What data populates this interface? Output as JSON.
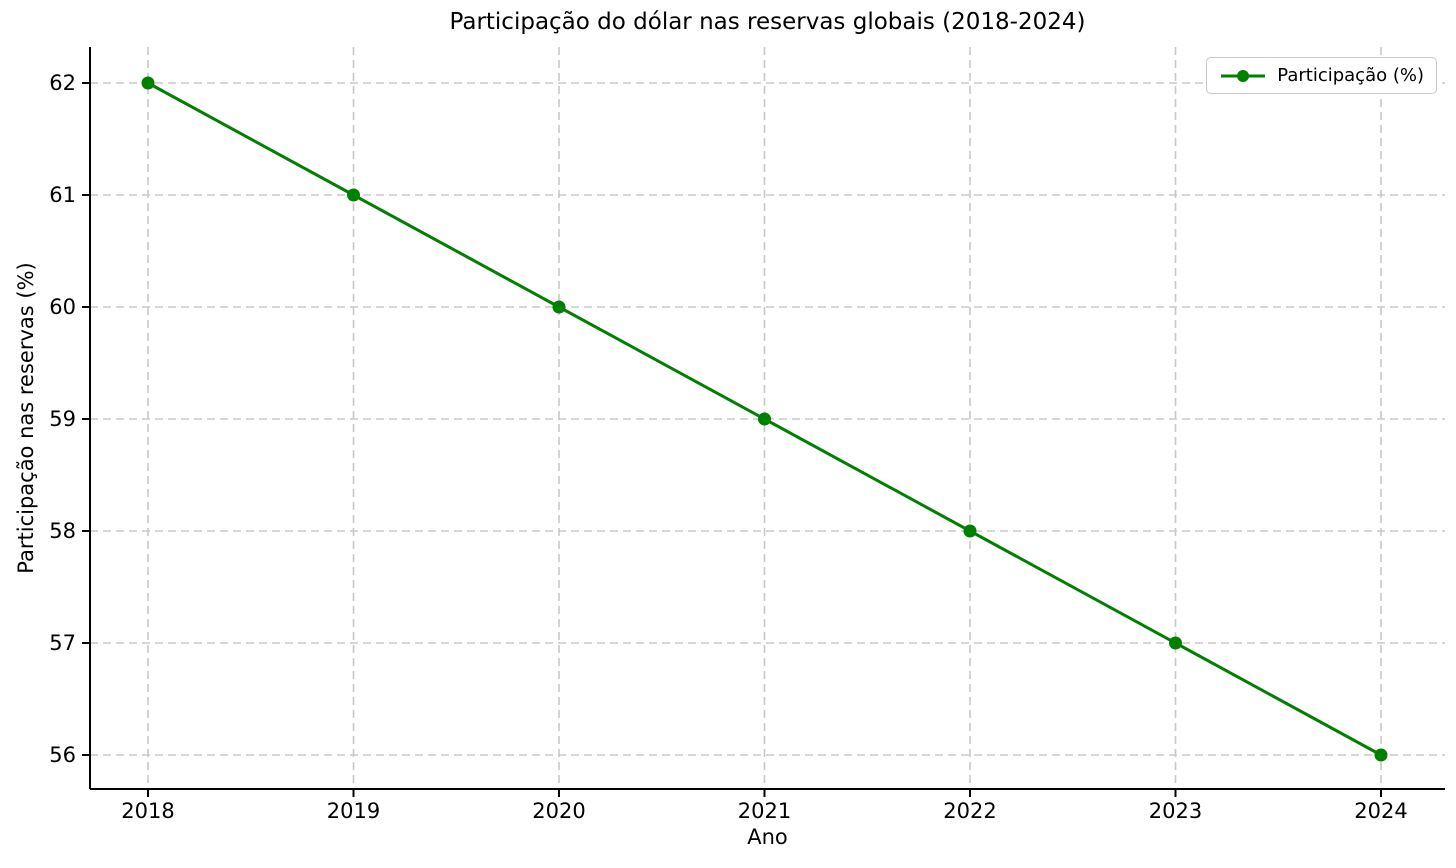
{
  "chart_data": {
    "type": "line",
    "title": "Participação do dólar nas reservas globais (2018-2024)",
    "xlabel": "Ano",
    "ylabel": "Participação nas reservas (%)",
    "x": [
      2018,
      2019,
      2020,
      2021,
      2022,
      2023,
      2024
    ],
    "series": [
      {
        "name": "Participação (%)",
        "values": [
          62,
          61,
          60,
          59,
          58,
          57,
          56
        ],
        "color": "#008000",
        "marker": "circle"
      }
    ],
    "yticks": [
      56,
      57,
      58,
      59,
      60,
      61,
      62
    ],
    "ylim": [
      55.69,
      62.32
    ],
    "grid": true,
    "grid_style": "dashed",
    "legend_position": "upper right",
    "colors": {
      "line": "#008000",
      "grid": "#c8c8c8",
      "axis": "#000000",
      "text": "#000000",
      "background": "#ffffff",
      "legend_border": "#c9c9c9"
    }
  }
}
